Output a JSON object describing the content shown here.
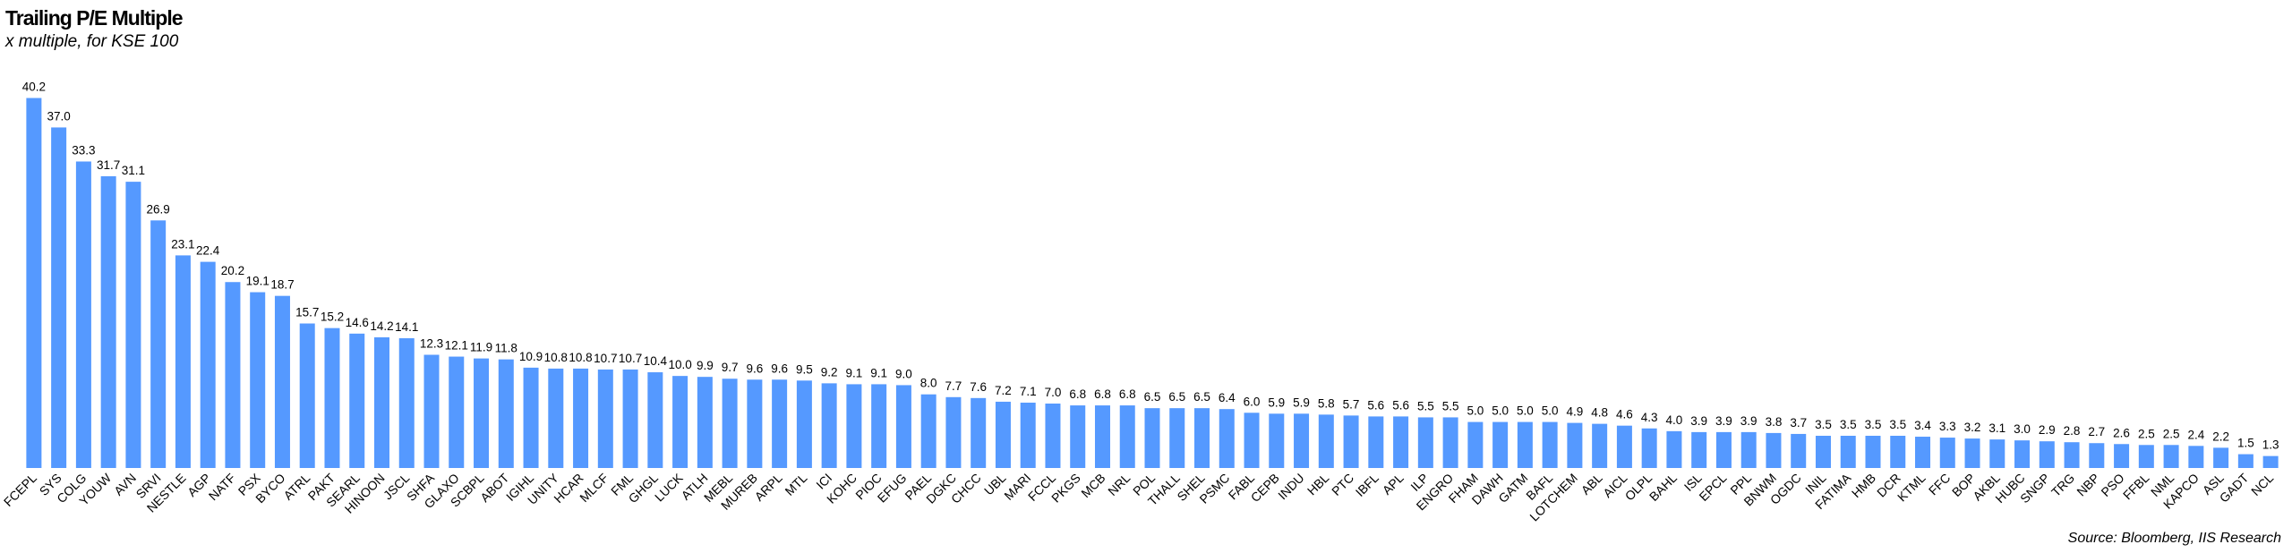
{
  "chart_data": {
    "type": "bar",
    "title": "Trailing P/E Multiple",
    "subtitle": "x multiple, for KSE 100",
    "source": "Source: Bloomberg, IIS Research",
    "color": "#5599ff",
    "ylim": [
      0,
      42
    ],
    "categories": [
      "FCEPL",
      "SYS",
      "COLG",
      "YOUW",
      "AVN",
      "SRVI",
      "NESTLE",
      "AGP",
      "NATF",
      "PSX",
      "BYCO",
      "ATRL",
      "PAKT",
      "SEARL",
      "HINOON",
      "JSCL",
      "SHFA",
      "GLAXO",
      "SCBPL",
      "ABOT",
      "IGIHL",
      "UNITY",
      "HCAR",
      "MLCF",
      "FML",
      "GHGL",
      "LUCK",
      "ATLH",
      "MEBL",
      "MUREB",
      "ARPL",
      "MTL",
      "ICI",
      "KOHC",
      "PIOC",
      "EFUG",
      "PAEL",
      "DGKC",
      "CHCC",
      "UBL",
      "MARI",
      "FCCL",
      "PKGS",
      "MCB",
      "NRL",
      "POL",
      "THALL",
      "SHEL",
      "PSMC",
      "FABL",
      "CEPB",
      "INDU",
      "HBL",
      "PTC",
      "IBFL",
      "APL",
      "ILP",
      "ENGRO",
      "FHAM",
      "DAWH",
      "GATM",
      "BAFL",
      "LOTCHEM",
      "ABL",
      "AICL",
      "OLPL",
      "BAHL",
      "ISL",
      "EPCL",
      "PPL",
      "BNWM",
      "OGDC",
      "INIL",
      "FATIMA",
      "HMB",
      "DCR",
      "KTML",
      "FFC",
      "BOP",
      "AKBL",
      "HUBC",
      "SNGP",
      "TRG",
      "NBP",
      "PSO",
      "FFBL",
      "NML",
      "KAPCO",
      "ASL",
      "GADT",
      "NCL"
    ],
    "values": [
      40.2,
      37.0,
      33.3,
      31.7,
      31.1,
      26.9,
      23.1,
      22.4,
      20.2,
      19.1,
      18.7,
      15.7,
      15.2,
      14.6,
      14.2,
      14.1,
      12.3,
      12.1,
      11.9,
      11.8,
      10.9,
      10.8,
      10.8,
      10.7,
      10.7,
      10.4,
      10.0,
      9.9,
      9.7,
      9.6,
      9.6,
      9.5,
      9.2,
      9.1,
      9.1,
      9.0,
      8.0,
      7.7,
      7.6,
      7.2,
      7.1,
      7.0,
      6.8,
      6.8,
      6.8,
      6.5,
      6.5,
      6.5,
      6.4,
      6.0,
      5.9,
      5.9,
      5.8,
      5.7,
      5.6,
      5.6,
      5.5,
      5.5,
      5.0,
      5.0,
      5.0,
      5.0,
      4.9,
      4.8,
      4.6,
      4.3,
      4.0,
      3.9,
      3.9,
      3.9,
      3.8,
      3.7,
      3.5,
      3.5,
      3.5,
      3.5,
      3.4,
      3.3,
      3.2,
      3.1,
      3.0,
      2.9,
      2.8,
      2.7,
      2.6,
      2.5,
      2.5,
      2.4,
      2.2,
      1.5,
      1.3
    ],
    "value_labels": [
      "40.2",
      "37.0",
      "33.3",
      "31.7",
      "31.1",
      "26.9",
      "23.1",
      "22.4",
      "20.2",
      "19.1",
      "18.7",
      "15.7",
      "15.2",
      "14.6",
      "14.2",
      "14.1",
      "12.3",
      "12.1",
      "11.9",
      "11.8",
      "10.9",
      "10.8",
      "10.8",
      "10.7",
      "10.7",
      "10.4",
      "10.0",
      "9.9",
      "9.7",
      "9.6",
      "9.6",
      "9.5",
      "9.2",
      "9.1",
      "9.1",
      "9.0",
      "8.0",
      "7.7",
      "7.6",
      "7.2",
      "7.1",
      "7.0",
      "6.8",
      "6.8",
      "6.8",
      "6.5",
      "6.5",
      "6.5",
      "6.4",
      "6.0",
      "5.9",
      "5.9",
      "5.8",
      "5.7",
      "5.6",
      "5.6",
      "5.5",
      "5.5",
      "5.0",
      "5.0",
      "5.0",
      "5.0",
      "4.9",
      "4.8",
      "4.6",
      "4.3",
      "4.0",
      "3.9",
      "3.9",
      "3.9",
      "3.8",
      "3.7",
      "3.5",
      "3.5",
      "3.5",
      "3.5",
      "3.4",
      "3.3",
      "3.2",
      "3.1",
      "3.0",
      "2.9",
      "2.8",
      "2.7",
      "2.6",
      "2.5",
      "2.5",
      "2.4",
      "2.2",
      "1.5",
      "1.3"
    ]
  }
}
